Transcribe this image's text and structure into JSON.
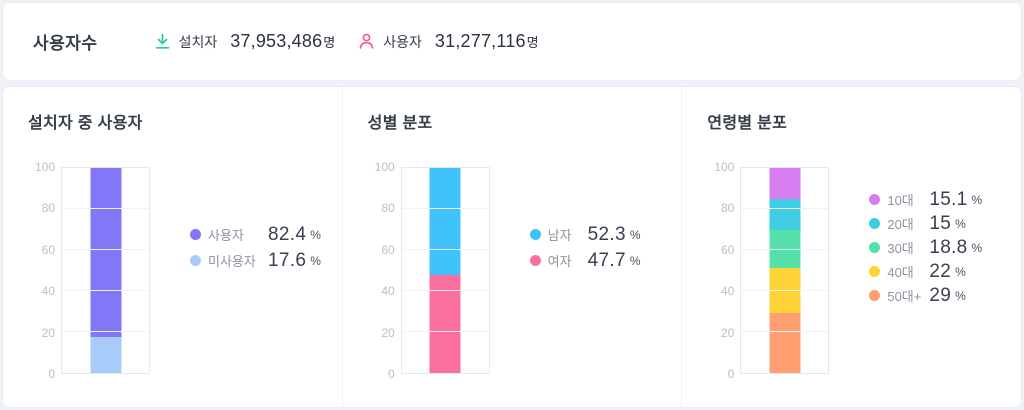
{
  "header": {
    "title": "사용자수",
    "stats": [
      {
        "icon": "download-icon",
        "label": "설치자",
        "value": "37,953,486",
        "unit": "명",
        "color": "#1ecf9d"
      },
      {
        "icon": "person-icon",
        "label": "사용자",
        "value": "31,277,116",
        "unit": "명",
        "color": "#fb5b95"
      }
    ]
  },
  "chart_data": [
    {
      "type": "bar",
      "stacked": true,
      "title": "설치자 중 사용자",
      "categories": [
        ""
      ],
      "ylim": [
        0,
        100
      ],
      "yticks": [
        0,
        20,
        40,
        60,
        80,
        100
      ],
      "grid": true,
      "legend_position": "right",
      "series": [
        {
          "name": "사용자",
          "values": [
            82.4
          ],
          "value_text": "82.4",
          "unit": "%",
          "color": "#8377f7"
        },
        {
          "name": "미사용자",
          "values": [
            17.6
          ],
          "value_text": "17.6",
          "unit": "%",
          "color": "#a8ccfa"
        }
      ]
    },
    {
      "type": "bar",
      "stacked": true,
      "title": "성별 분포",
      "categories": [
        ""
      ],
      "ylim": [
        0,
        100
      ],
      "yticks": [
        0,
        20,
        40,
        60,
        80,
        100
      ],
      "grid": true,
      "legend_position": "right",
      "series": [
        {
          "name": "남자",
          "values": [
            52.3
          ],
          "value_text": "52.3",
          "unit": "%",
          "color": "#40c3fa"
        },
        {
          "name": "여자",
          "values": [
            47.7
          ],
          "value_text": "47.7",
          "unit": "%",
          "color": "#fb6f9e"
        }
      ]
    },
    {
      "type": "bar",
      "stacked": true,
      "title": "연령별 분포",
      "categories": [
        ""
      ],
      "ylim": [
        0,
        100
      ],
      "yticks": [
        0,
        20,
        40,
        60,
        80,
        100
      ],
      "grid": true,
      "legend_position": "right",
      "series": [
        {
          "name": "10대",
          "values": [
            15.1
          ],
          "value_text": "15.1",
          "unit": "%",
          "color": "#d87df0"
        },
        {
          "name": "20대",
          "values": [
            15
          ],
          "value_text": "15",
          "unit": "%",
          "color": "#3fcde1"
        },
        {
          "name": "30대",
          "values": [
            18.8
          ],
          "value_text": "18.8",
          "unit": "%",
          "color": "#53e0a9"
        },
        {
          "name": "40대",
          "values": [
            22
          ],
          "value_text": "22",
          "unit": "%",
          "color": "#fed337"
        },
        {
          "name": "50대+",
          "values": [
            29
          ],
          "value_text": "29",
          "unit": "%",
          "color": "#fe9e71"
        }
      ]
    }
  ]
}
